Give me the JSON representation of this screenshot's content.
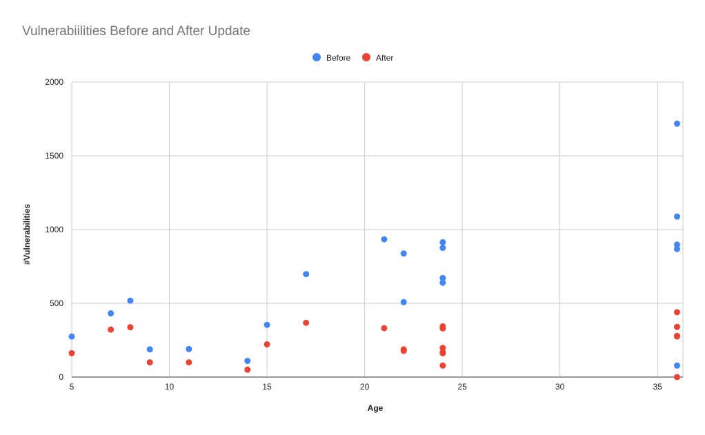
{
  "chart_data": {
    "type": "scatter",
    "title": "Vulnerabiilities Before and After Update",
    "xlabel": "Age",
    "ylabel": "#Vulnerabilities",
    "xlim": [
      5,
      36.3
    ],
    "ylim": [
      0,
      2000
    ],
    "x_ticks": [
      "5",
      "10",
      "15",
      "20",
      "25",
      "30",
      "35"
    ],
    "y_ticks": [
      "0",
      "500",
      "1000",
      "1500",
      "2000"
    ],
    "grid": true,
    "legend_position": "top",
    "series": [
      {
        "name": "Before",
        "color": "#4285f4",
        "points": [
          [
            5,
            275
          ],
          [
            7,
            432
          ],
          [
            8,
            518
          ],
          [
            9,
            188
          ],
          [
            11,
            190
          ],
          [
            14,
            110
          ],
          [
            15,
            354
          ],
          [
            17,
            698
          ],
          [
            21,
            934
          ],
          [
            22,
            838
          ],
          [
            22,
            508
          ],
          [
            24,
            914
          ],
          [
            24,
            876
          ],
          [
            24,
            672
          ],
          [
            24,
            640
          ],
          [
            36,
            1718
          ],
          [
            36,
            1088
          ],
          [
            36,
            898
          ],
          [
            36,
            868
          ],
          [
            36,
            78
          ]
        ]
      },
      {
        "name": "After",
        "color": "#ea4335",
        "points": [
          [
            5,
            162
          ],
          [
            7,
            322
          ],
          [
            8,
            338
          ],
          [
            9,
            100
          ],
          [
            11,
            100
          ],
          [
            14,
            50
          ],
          [
            15,
            222
          ],
          [
            17,
            368
          ],
          [
            21,
            332
          ],
          [
            22,
            188
          ],
          [
            22,
            178
          ],
          [
            24,
            344
          ],
          [
            24,
            330
          ],
          [
            24,
            198
          ],
          [
            24,
            170
          ],
          [
            24,
            162
          ],
          [
            24,
            78
          ],
          [
            36,
            440
          ],
          [
            36,
            340
          ],
          [
            36,
            280
          ],
          [
            36,
            275
          ],
          [
            36,
            0
          ]
        ]
      }
    ]
  }
}
